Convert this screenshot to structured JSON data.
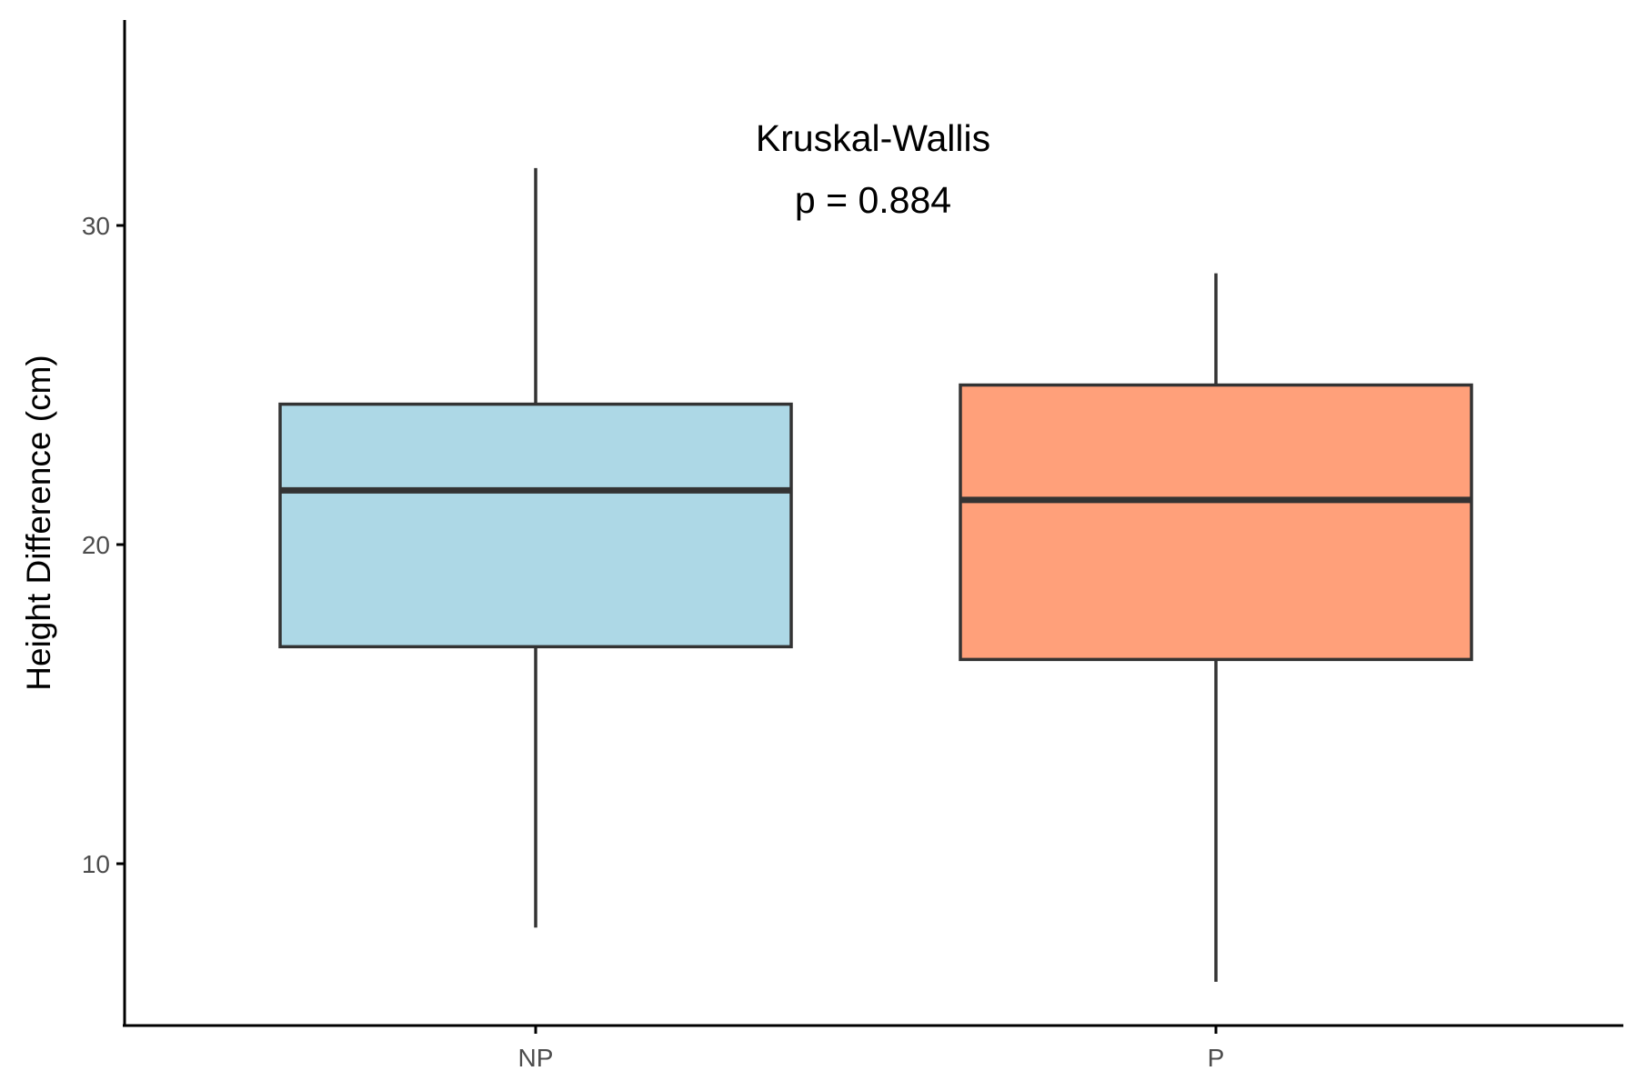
{
  "chart_data": {
    "type": "boxplot",
    "title": "",
    "xlabel": "",
    "ylabel": "Height Difference (cm)",
    "ylim": [
      5,
      37
    ],
    "yticks": [
      10,
      20,
      30
    ],
    "categories": [
      "NP",
      "P"
    ],
    "boxes": [
      {
        "category": "NP",
        "whisker_low": 8.0,
        "q1": 16.8,
        "median": 21.7,
        "q3": 24.4,
        "whisker_high": 31.8,
        "fill": "#ADD8E6"
      },
      {
        "category": "P",
        "whisker_low": 6.3,
        "q1": 16.4,
        "median": 21.4,
        "q3": 25.0,
        "whisker_high": 28.5,
        "fill": "#FFA07A"
      }
    ],
    "annotation": {
      "line1": "Kruskal-Wallis",
      "line2": "p = 0.884"
    },
    "grid": false,
    "legend": "none",
    "colors": {
      "box_outline": "#333333",
      "axis": "#000000",
      "tick_label": "#4d4d4d"
    }
  }
}
